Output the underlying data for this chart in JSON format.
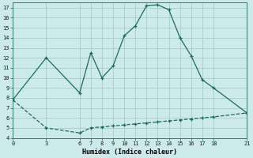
{
  "xlabel": "Humidex (Indice chaleur)",
  "bg_color": "#cceaea",
  "line_color": "#1a6b5a",
  "grid_color": "#a8cccc",
  "curve_x": [
    0,
    3,
    6,
    7,
    8,
    9,
    10,
    11,
    12,
    13,
    14,
    15,
    16,
    17,
    18,
    21
  ],
  "curve_y": [
    7.8,
    12.0,
    8.5,
    12.5,
    10.0,
    11.2,
    14.2,
    15.2,
    17.2,
    17.3,
    16.8,
    14.0,
    12.2,
    9.8,
    9.0,
    6.5
  ],
  "lower_x": [
    0,
    3,
    6,
    7,
    8,
    9,
    10,
    11,
    12,
    13,
    14,
    15,
    16,
    17,
    18,
    21
  ],
  "lower_y": [
    7.8,
    5.0,
    4.5,
    5.0,
    5.1,
    5.2,
    5.3,
    5.4,
    5.5,
    5.6,
    5.7,
    5.8,
    5.9,
    6.0,
    6.1,
    6.5
  ],
  "xticks": [
    0,
    3,
    6,
    7,
    8,
    9,
    10,
    11,
    12,
    13,
    14,
    15,
    16,
    17,
    18,
    21
  ],
  "yticks": [
    4,
    5,
    6,
    7,
    8,
    9,
    10,
    11,
    12,
    13,
    14,
    15,
    16,
    17
  ],
  "xlim": [
    0,
    21
  ],
  "ylim": [
    4.0,
    17.5
  ]
}
